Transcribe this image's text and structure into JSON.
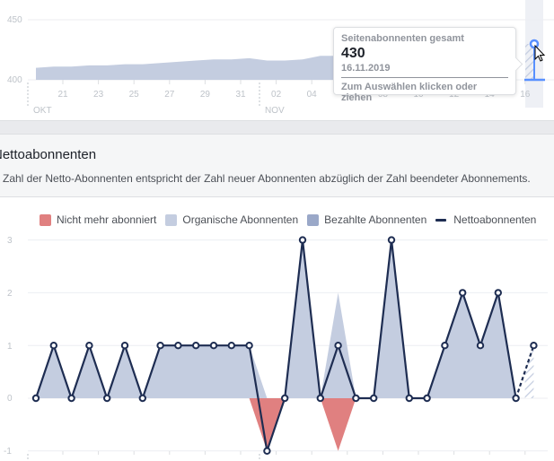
{
  "top_chart": {
    "y_ticks": [
      "450",
      "400"
    ],
    "x_ticks": [
      "21",
      "23",
      "25",
      "27",
      "29",
      "31",
      "02",
      "04",
      "06",
      "08",
      "10",
      "12",
      "14",
      "16"
    ],
    "month_labels": [
      "OKT",
      "NOV"
    ],
    "tooltip": {
      "label": "Seitenabonnenten gesamt",
      "value": "430",
      "date": "16.11.2019",
      "hint": "Zum Auswählen klicken oder ziehen"
    }
  },
  "section": {
    "title": "Nettoabonnenten",
    "title_visible": "ettoabonnenten",
    "description": "Zahl der Netto-Abonnenten entspricht der Zahl neuer Abonnenten abzüglich der Zahl beendeter Abonnements."
  },
  "legend": {
    "items": [
      {
        "label": "Nicht mehr abonniert",
        "color": "#e08080"
      },
      {
        "label": "Organische Abonnenten",
        "color": "#c4cde0"
      },
      {
        "label": "Bezahlte Abonnenten",
        "color": "#9aa8c8"
      },
      {
        "label": "Nettoabonnenten",
        "color": "#1e2d52"
      }
    ]
  },
  "bottom_chart": {
    "y_ticks": [
      "3",
      "2",
      "1",
      "0",
      "-1"
    ]
  },
  "chart_data": [
    {
      "type": "area",
      "title": "Seitenabonnenten gesamt",
      "x": [
        "20.10",
        "21.10",
        "22.10",
        "23.10",
        "24.10",
        "25.10",
        "26.10",
        "27.10",
        "28.10",
        "29.10",
        "30.10",
        "31.10",
        "01.11",
        "02.11",
        "03.11",
        "04.11",
        "05.11",
        "06.11",
        "07.11",
        "08.11",
        "09.11",
        "10.11",
        "11.11",
        "12.11",
        "13.11",
        "14.11",
        "15.11",
        "16.11"
      ],
      "values": [
        410,
        411,
        411,
        412,
        412,
        413,
        413,
        414,
        415,
        416,
        417,
        417,
        418,
        416,
        416,
        417,
        420,
        420,
        421,
        422,
        423,
        424,
        425,
        426,
        427,
        428,
        429,
        430
      ],
      "ylim": [
        400,
        450
      ],
      "y_ticks": [
        400,
        450
      ],
      "grid": true,
      "highlight": {
        "date": "16.11.2019",
        "value": 430
      }
    },
    {
      "type": "area",
      "title": "Nettoabonnenten",
      "x": [
        "19.10",
        "20.10",
        "21.10",
        "22.10",
        "23.10",
        "24.10",
        "25.10",
        "26.10",
        "27.10",
        "28.10",
        "29.10",
        "30.10",
        "31.10",
        "01.11",
        "02.11",
        "03.11",
        "04.11",
        "05.11",
        "06.11",
        "07.11",
        "08.11",
        "09.11",
        "10.11",
        "11.11",
        "12.11",
        "13.11",
        "14.11",
        "15.11",
        "16.11"
      ],
      "series": [
        {
          "name": "Nicht mehr abonniert",
          "values": [
            0,
            0,
            0,
            0,
            0,
            0,
            0,
            0,
            0,
            0,
            0,
            0,
            0,
            -1,
            0,
            0,
            0,
            -1,
            0,
            0,
            0,
            0,
            0,
            0,
            0,
            0,
            0,
            0,
            0
          ]
        },
        {
          "name": "Organische Abonnenten",
          "values": [
            0,
            1,
            0,
            1,
            0,
            1,
            0,
            1,
            1,
            1,
            1,
            1,
            1,
            0,
            0,
            3,
            0,
            2,
            0,
            0,
            3,
            0,
            0,
            1,
            2,
            1,
            2,
            0,
            1
          ]
        },
        {
          "name": "Bezahlte Abonnenten",
          "values": [
            0,
            0,
            0,
            0,
            0,
            0,
            0,
            0,
            0,
            0,
            0,
            0,
            0,
            0,
            0,
            0,
            0,
            0,
            0,
            0,
            0,
            0,
            0,
            0,
            0,
            0,
            0,
            0,
            0
          ]
        },
        {
          "name": "Nettoabonnenten",
          "values": [
            0,
            1,
            0,
            1,
            0,
            1,
            0,
            1,
            1,
            1,
            1,
            1,
            1,
            -1,
            0,
            3,
            0,
            1,
            0,
            0,
            3,
            0,
            0,
            1,
            2,
            1,
            2,
            0,
            1
          ]
        }
      ],
      "ylim": [
        -1,
        3
      ],
      "y_ticks": [
        -1,
        0,
        1,
        2,
        3
      ],
      "grid": true,
      "legend_position": "top"
    }
  ]
}
